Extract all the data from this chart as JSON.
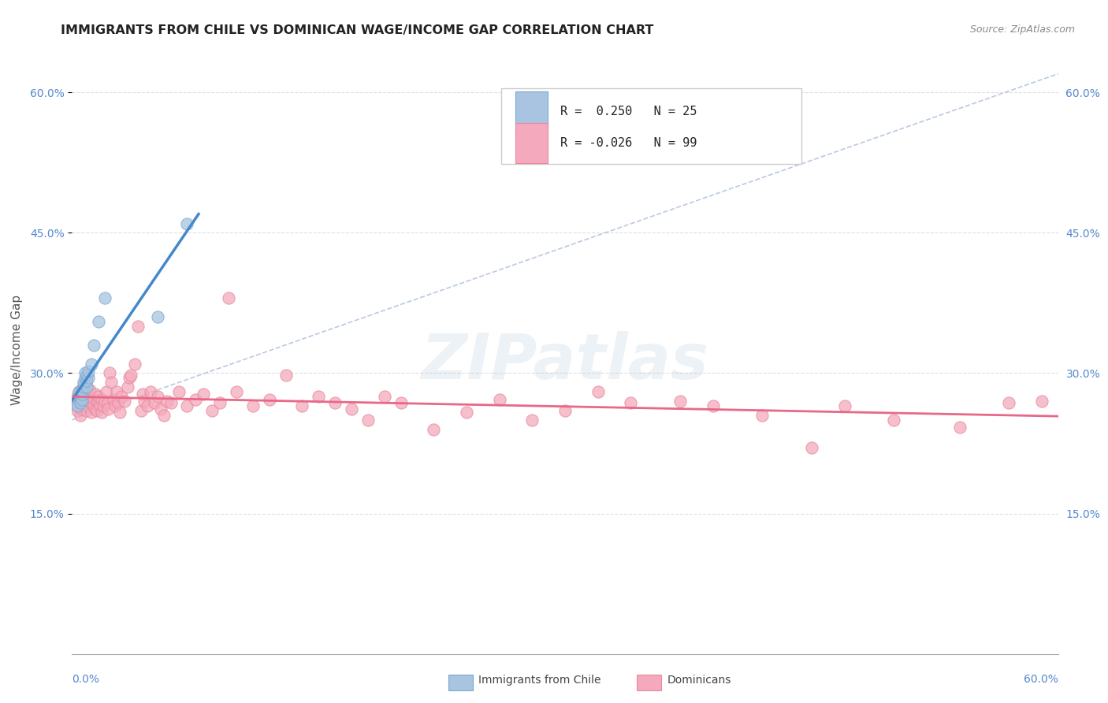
{
  "title": "IMMIGRANTS FROM CHILE VS DOMINICAN WAGE/INCOME GAP CORRELATION CHART",
  "source": "Source: ZipAtlas.com",
  "ylabel": "Wage/Income Gap",
  "xmin": 0.0,
  "xmax": 0.6,
  "ymin": 0.0,
  "ymax": 0.65,
  "ytick_vals": [
    0.15,
    0.3,
    0.45,
    0.6
  ],
  "ytick_labels": [
    "15.0%",
    "30.0%",
    "45.0%",
    "60.0%"
  ],
  "chile_color": "#A8C4E0",
  "chile_edge_color": "#7AAAD0",
  "chile_line_color": "#4488CC",
  "dominican_color": "#F4AABC",
  "dominican_edge_color": "#E888A0",
  "dominican_line_color": "#E86888",
  "diag_line_color": "#AABBDD",
  "grid_color": "#DDDDDD",
  "background_color": "#FFFFFF",
  "title_color": "#333333",
  "axis_tick_color": "#5588CC",
  "watermark": "ZIPatlas",
  "legend_R_chile": "R =  0.250",
  "legend_N_chile": "N = 25",
  "legend_R_dom": "R = -0.026",
  "legend_N_dom": "N = 99",
  "chile_scatter_x": [
    0.003,
    0.003,
    0.004,
    0.004,
    0.005,
    0.005,
    0.005,
    0.006,
    0.006,
    0.006,
    0.007,
    0.007,
    0.008,
    0.008,
    0.009,
    0.009,
    0.009,
    0.01,
    0.01,
    0.012,
    0.013,
    0.016,
    0.02,
    0.052,
    0.07
  ],
  "chile_scatter_y": [
    0.27,
    0.265,
    0.275,
    0.28,
    0.27,
    0.275,
    0.268,
    0.272,
    0.278,
    0.282,
    0.285,
    0.29,
    0.295,
    0.3,
    0.285,
    0.292,
    0.298,
    0.295,
    0.302,
    0.31,
    0.33,
    0.355,
    0.38,
    0.36,
    0.46
  ],
  "dominican_scatter_x": [
    0.002,
    0.003,
    0.003,
    0.003,
    0.004,
    0.004,
    0.005,
    0.005,
    0.005,
    0.006,
    0.006,
    0.007,
    0.007,
    0.007,
    0.008,
    0.008,
    0.009,
    0.009,
    0.01,
    0.01,
    0.011,
    0.011,
    0.012,
    0.012,
    0.013,
    0.013,
    0.014,
    0.014,
    0.015,
    0.015,
    0.016,
    0.016,
    0.017,
    0.018,
    0.018,
    0.019,
    0.02,
    0.021,
    0.022,
    0.022,
    0.023,
    0.024,
    0.025,
    0.026,
    0.027,
    0.028,
    0.029,
    0.03,
    0.032,
    0.034,
    0.035,
    0.036,
    0.038,
    0.04,
    0.042,
    0.043,
    0.044,
    0.046,
    0.048,
    0.05,
    0.052,
    0.054,
    0.056,
    0.058,
    0.06,
    0.065,
    0.07,
    0.075,
    0.08,
    0.085,
    0.09,
    0.095,
    0.1,
    0.11,
    0.12,
    0.13,
    0.14,
    0.15,
    0.16,
    0.17,
    0.18,
    0.19,
    0.2,
    0.22,
    0.24,
    0.26,
    0.28,
    0.3,
    0.32,
    0.34,
    0.37,
    0.39,
    0.42,
    0.45,
    0.47,
    0.5,
    0.54,
    0.57,
    0.59
  ],
  "dominican_scatter_y": [
    0.27,
    0.26,
    0.275,
    0.265,
    0.272,
    0.28,
    0.255,
    0.268,
    0.278,
    0.262,
    0.282,
    0.27,
    0.288,
    0.265,
    0.272,
    0.28,
    0.268,
    0.26,
    0.275,
    0.265,
    0.27,
    0.282,
    0.268,
    0.258,
    0.272,
    0.265,
    0.278,
    0.262,
    0.27,
    0.26,
    0.268,
    0.275,
    0.265,
    0.258,
    0.272,
    0.265,
    0.27,
    0.28,
    0.268,
    0.262,
    0.3,
    0.29,
    0.272,
    0.265,
    0.28,
    0.268,
    0.258,
    0.275,
    0.27,
    0.285,
    0.295,
    0.298,
    0.31,
    0.35,
    0.26,
    0.278,
    0.27,
    0.265,
    0.28,
    0.268,
    0.275,
    0.262,
    0.255,
    0.27,
    0.268,
    0.28,
    0.265,
    0.272,
    0.278,
    0.26,
    0.268,
    0.38,
    0.28,
    0.265,
    0.272,
    0.298,
    0.265,
    0.275,
    0.268,
    0.262,
    0.25,
    0.275,
    0.268,
    0.24,
    0.258,
    0.272,
    0.25,
    0.26,
    0.28,
    0.268,
    0.27,
    0.265,
    0.255,
    0.22,
    0.265,
    0.25,
    0.242,
    0.268,
    0.27
  ]
}
